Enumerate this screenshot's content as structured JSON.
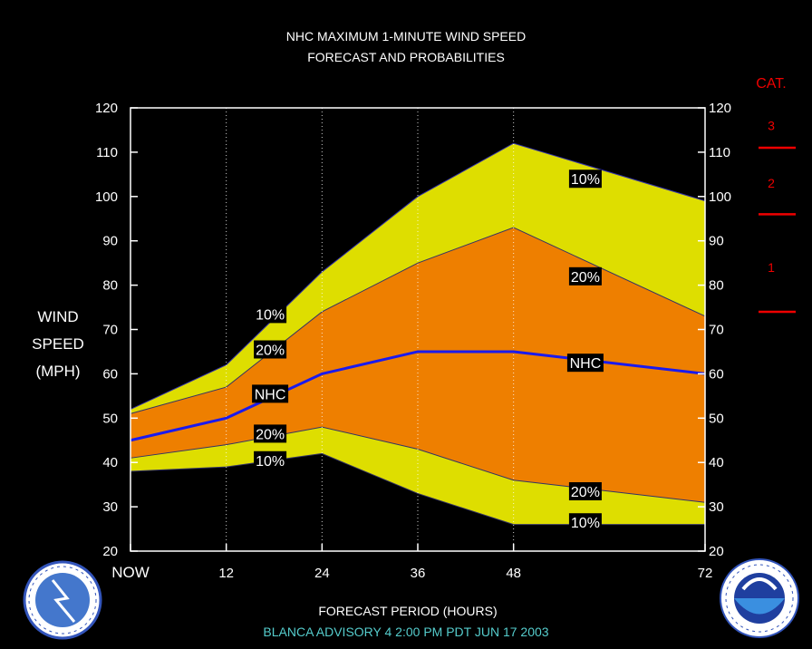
{
  "title": "NHC MAXIMUM 1-MINUTE WIND SPEED",
  "subtitle": "FORECAST AND PROBABILITIES",
  "footer": "BLANCA   ADVISORY  4 2:00  PM  PDT  JUN  17  2003",
  "colors": {
    "background": "#000000",
    "outer_band": "#dede00",
    "inner_band": "#ee7f00",
    "nhc_line": "#1a1aee",
    "category": "#ee0000",
    "footer": "#55cccc"
  },
  "chart_data": {
    "type": "area",
    "title": "NHC MAXIMUM 1-MINUTE WIND SPEED",
    "subtitle": "FORECAST AND PROBABILITIES",
    "xlabel": "FORECAST PERIOD (HOURS)",
    "ylabel": [
      "WIND",
      "SPEED",
      "(MPH)"
    ],
    "x": [
      0,
      12,
      24,
      36,
      48,
      72
    ],
    "x_tick_labels": [
      "NOW",
      "12",
      "24",
      "36",
      "48",
      "72"
    ],
    "xlim": [
      0,
      72
    ],
    "ylim": [
      20,
      120
    ],
    "y_ticks": [
      20,
      30,
      40,
      50,
      60,
      70,
      80,
      90,
      100,
      110,
      120
    ],
    "vertical_gridlines_at": [
      12,
      24,
      36,
      48
    ],
    "series": [
      {
        "name": "10%",
        "role": "upper",
        "values": [
          52,
          62,
          83,
          100,
          112,
          99
        ]
      },
      {
        "name": "20%",
        "role": "upper",
        "values": [
          51,
          57,
          74,
          85,
          93,
          73
        ]
      },
      {
        "name": "NHC",
        "role": "forecast",
        "values": [
          45,
          50,
          60,
          65,
          65,
          60
        ]
      },
      {
        "name": "20%",
        "role": "lower",
        "values": [
          41,
          44,
          48,
          43,
          36,
          31
        ]
      },
      {
        "name": "10%",
        "role": "lower",
        "values": [
          38,
          39,
          42,
          33,
          26,
          26
        ]
      }
    ],
    "line_labels": [
      {
        "text": "10%",
        "x": 17.5,
        "y": 73.5
      },
      {
        "text": "20%",
        "x": 17.5,
        "y": 65.5
      },
      {
        "text": "NHC",
        "x": 17.5,
        "y": 55.5
      },
      {
        "text": "20%",
        "x": 17.5,
        "y": 46.5
      },
      {
        "text": "10%",
        "x": 17.5,
        "y": 40.5
      },
      {
        "text": "10%",
        "x": 57,
        "y": 104
      },
      {
        "text": "20%",
        "x": 57,
        "y": 82
      },
      {
        "text": "NHC",
        "x": 57,
        "y": 62.5
      },
      {
        "text": "20%",
        "x": 57,
        "y": 33.5
      },
      {
        "text": "10%",
        "x": 57,
        "y": 26.5
      }
    ],
    "categories_legend": {
      "title": "CAT.",
      "items": [
        {
          "label": "3",
          "y": 116
        },
        {
          "label": "2",
          "y": 103
        },
        {
          "label": "1",
          "y": 84
        }
      ],
      "thresholds": [
        111,
        96,
        74
      ]
    }
  }
}
